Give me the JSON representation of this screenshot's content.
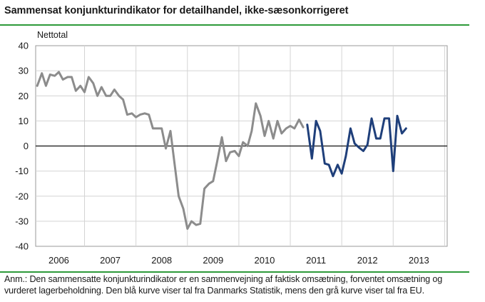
{
  "chart_data": {
    "type": "line",
    "title": "Sammensat konjunkturindikator for detailhandel, ikke-sæsonkorrigeret",
    "ylabel": "Nettotal",
    "xlabel": "",
    "ylim": [
      -40,
      40
    ],
    "yticks": [
      40,
      30,
      20,
      10,
      0,
      -10,
      -20,
      -30,
      -40
    ],
    "year_labels": [
      "2006",
      "2007",
      "2008",
      "2009",
      "2010",
      "2011",
      "2012",
      "2013"
    ],
    "xlim": [
      2005.55,
      2013.55
    ],
    "grid": true,
    "colors": {
      "eu": "#8c8c8c",
      "dst": "#1f3f7a",
      "grid": "#d4d4d4",
      "accent": "#2e9a3a"
    },
    "series": [
      {
        "key": "eu",
        "x": [
          2005.58,
          2005.67,
          2005.75,
          2005.83,
          2005.92,
          2006.0,
          2006.08,
          2006.17,
          2006.25,
          2006.33,
          2006.42,
          2006.5,
          2006.58,
          2006.67,
          2006.75,
          2006.83,
          2006.92,
          2007.0,
          2007.08,
          2007.17,
          2007.25,
          2007.33,
          2007.42,
          2007.5,
          2007.58,
          2007.67,
          2007.75,
          2007.83,
          2007.92,
          2008.0,
          2008.08,
          2008.17,
          2008.25,
          2008.33,
          2008.42,
          2008.5,
          2008.58,
          2008.67,
          2008.75,
          2008.83,
          2008.92,
          2009.0,
          2009.08,
          2009.17,
          2009.25,
          2009.33,
          2009.42,
          2009.5,
          2009.58,
          2009.67,
          2009.75,
          2009.83,
          2009.92,
          2010.0,
          2010.08,
          2010.17,
          2010.25,
          2010.33,
          2010.42,
          2010.5,
          2010.58,
          2010.67,
          2010.75
        ],
        "values": [
          24,
          29,
          24,
          28.5,
          28,
          29.5,
          26.5,
          27.5,
          27.5,
          22,
          24,
          21.5,
          27.5,
          25,
          20,
          23.5,
          20,
          20,
          22.5,
          20,
          18.5,
          12.5,
          13,
          11.5,
          12.5,
          13,
          12.5,
          7,
          7,
          7,
          -1,
          6,
          -7,
          -20,
          -25,
          -33,
          -30,
          -31.5,
          -31,
          -17,
          -15,
          -14,
          -6,
          3.5,
          -6,
          -2.5,
          -2,
          -4,
          1.5,
          0,
          6,
          17,
          12,
          4,
          10,
          3,
          10,
          5,
          7,
          8,
          7,
          10.5,
          7.5
        ]
      },
      {
        "key": "dst",
        "x": [
          2010.83,
          2010.92,
          2011.0,
          2011.08,
          2011.17,
          2011.25,
          2011.33,
          2011.42,
          2011.5,
          2011.58,
          2011.67,
          2011.75,
          2011.83,
          2011.92,
          2012.0,
          2012.08,
          2012.17,
          2012.25,
          2012.33,
          2012.42,
          2012.5,
          2012.58,
          2012.67,
          2012.75,
          2012.83,
          2012.92
        ],
        "values": [
          8.5,
          -5,
          10,
          6,
          -7,
          -7.5,
          -12,
          -7.5,
          -11,
          -4,
          7,
          1,
          -0.5,
          -2,
          0.5,
          11,
          3,
          3,
          11,
          11,
          -10,
          12,
          5,
          7,
          null,
          null
        ]
      }
    ]
  },
  "header": {
    "title": "Sammensat konjunkturindikator for detailhandel, ikke-sæsonkorrigeret"
  },
  "footnote": {
    "text": "Anm.: Den sammensatte konjunkturindikator er en sammenvejning af faktisk omsætning, forventet omsætning og vurderet lagerbeholdning. Den blå kurve viser tal fra Danmarks Statistik, mens den grå kurve viser tal fra EU."
  }
}
